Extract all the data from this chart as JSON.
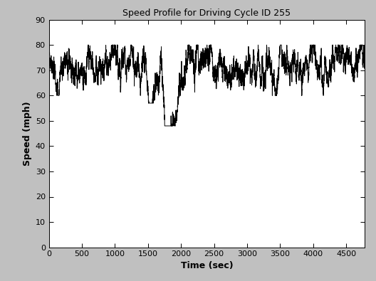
{
  "title": "Speed Profile for Driving Cycle ID 255",
  "xlabel": "Time (sec)",
  "ylabel": "Speed (mph)",
  "xlim": [
    0,
    4782
  ],
  "ylim": [
    0,
    90
  ],
  "xticks": [
    0,
    500,
    1000,
    1500,
    2000,
    2500,
    3000,
    3500,
    4000,
    4500
  ],
  "yticks": [
    0,
    10,
    20,
    30,
    40,
    50,
    60,
    70,
    80,
    90
  ],
  "bg_color": "#c0c0c0",
  "plot_bg": "#ffffff",
  "line_color": "#000000",
  "line_width": 0.7,
  "avg_speed": 72.8,
  "total_seconds": 4782,
  "min_speed_dip": 48.0,
  "fig_width": 5.28,
  "fig_height": 3.95,
  "dpi": 100
}
